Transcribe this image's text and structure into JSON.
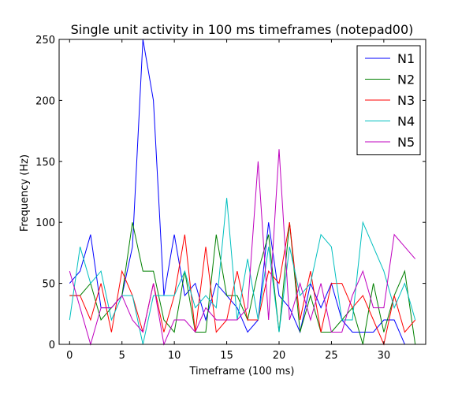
{
  "chart_data": {
    "type": "line",
    "title": "Single unit activity in 100 ms timeframes (notepad00)",
    "xlabel": "Timeframe (100 ms)",
    "ylabel": "Frequency (Hz)",
    "xlim": [
      -1,
      34
    ],
    "ylim": [
      0,
      250
    ],
    "xticks": [
      0,
      5,
      10,
      15,
      20,
      25,
      30
    ],
    "yticks": [
      0,
      50,
      100,
      150,
      200,
      250
    ],
    "grid": false,
    "legend_position": "top-right",
    "x": [
      0,
      1,
      2,
      3,
      4,
      5,
      6,
      7,
      8,
      9,
      10,
      11,
      12,
      13,
      14,
      15,
      16,
      17,
      18,
      19,
      20,
      21,
      22,
      23,
      24,
      25,
      26,
      27,
      28,
      29,
      30,
      31,
      32,
      33
    ],
    "series": [
      {
        "name": "N1",
        "color": "#0000ff",
        "values": [
          50,
          60,
          90,
          30,
          30,
          40,
          80,
          250,
          200,
          40,
          90,
          40,
          50,
          20,
          50,
          40,
          30,
          10,
          20,
          100,
          40,
          30,
          10,
          50,
          30,
          50,
          20,
          10,
          10,
          10,
          20,
          20,
          0,
          0
        ]
      },
      {
        "name": "N2",
        "color": "#008000",
        "values": [
          40,
          40,
          50,
          20,
          30,
          40,
          100,
          60,
          60,
          20,
          10,
          60,
          10,
          10,
          90,
          40,
          40,
          20,
          60,
          90,
          10,
          100,
          10,
          40,
          10,
          10,
          20,
          30,
          0,
          50,
          10,
          40,
          60,
          0
        ]
      },
      {
        "name": "N3",
        "color": "#ff0000",
        "values": [
          40,
          40,
          20,
          50,
          10,
          60,
          40,
          10,
          50,
          10,
          40,
          90,
          10,
          80,
          10,
          20,
          60,
          20,
          20,
          60,
          50,
          100,
          20,
          60,
          10,
          50,
          50,
          30,
          40,
          20,
          0,
          40,
          10,
          20
        ]
      },
      {
        "name": "N4",
        "color": "#00bfbf",
        "values": [
          20,
          80,
          50,
          60,
          20,
          40,
          40,
          0,
          40,
          40,
          40,
          60,
          30,
          40,
          30,
          120,
          20,
          70,
          20,
          80,
          10,
          80,
          40,
          50,
          90,
          80,
          20,
          20,
          100,
          80,
          60,
          30,
          50,
          20
        ]
      },
      {
        "name": "N5",
        "color": "#bf00bf",
        "values": [
          60,
          30,
          0,
          30,
          30,
          40,
          20,
          10,
          50,
          0,
          20,
          20,
          10,
          30,
          20,
          20,
          20,
          30,
          150,
          20,
          160,
          20,
          50,
          20,
          50,
          10,
          10,
          40,
          60,
          30,
          30,
          90,
          80,
          70
        ]
      }
    ]
  }
}
